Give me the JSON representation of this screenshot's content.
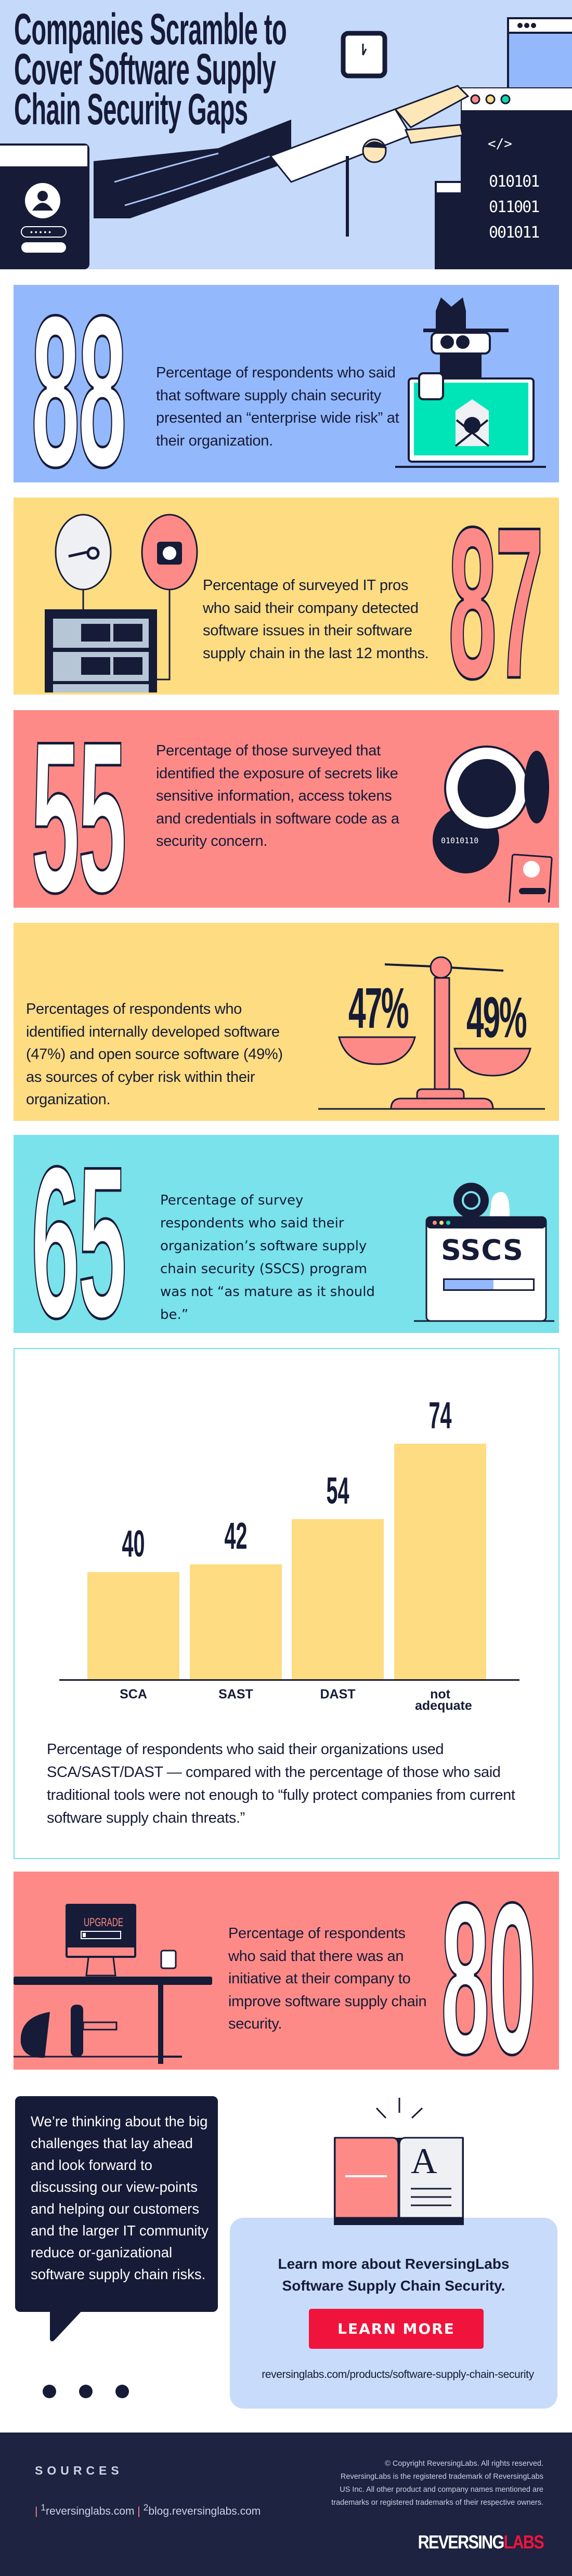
{
  "hero": {
    "title_lines": [
      "Companies Scramble to",
      "Cover Software Supply",
      "Chain Security Gaps"
    ],
    "code_tag": "</>",
    "binary_lines": [
      "010101",
      "011001",
      "001011"
    ]
  },
  "stats": [
    {
      "number": "88",
      "text": "Percentage of respondents who said that software supply chain security presented an “enterprise wide risk” at their organization.",
      "color": "#94b8fc"
    },
    {
      "number": "87",
      "text": "Percentage of surveyed IT pros who said their company detected software issues in their software supply chain in the last 12 months.",
      "color": "#fddc82"
    },
    {
      "number": "55",
      "text": "Percentage of those surveyed that identified the exposure of secrets like sensitive information, access tokens and credentials in software code as a security concern.",
      "color": "#fe8a87",
      "illustration_code": "01010110"
    },
    {
      "text": "Percentages of respondents who identified internally developed software (47%) and open source software (49%) as sources of cyber risk within their organization.",
      "left_value": "47%",
      "right_value": "49%",
      "color": "#fddc82"
    },
    {
      "number": "65",
      "text": "Percentage of survey respondents who said their organization’s software supply chain security (SSCS) program was not “as mature as it should be.”",
      "color": "#79e2eb",
      "badge": "SSCS",
      "maturity_progress": 0.55
    },
    {
      "number": "80",
      "text": "Percentage of respondents who said that there was an initiative at their company to improve software supply chain security.",
      "color": "#fe8a87",
      "screen_label": "UPGRADE"
    }
  ],
  "chart_data": {
    "type": "bar",
    "categories": [
      "SCA",
      "SAST",
      "DAST",
      "not adequate"
    ],
    "values": [
      40,
      42,
      54,
      74
    ],
    "bar_color": "#fddc82",
    "grid": false,
    "caption": "Percentage of respondents who said their organizations used SCA/SAST/DAST — compared with the percentage of those who said traditional tools were not enough to “fully protect companies from current software supply chain threats.”"
  },
  "quote": {
    "text": "We’re thinking about the big challenges that lay ahead and look forward to discussing our view-points and helping our customers and the larger IT community reduce or-ganizational software supply chain risks."
  },
  "cta": {
    "heading_line1": "Learn more about ReversingLabs",
    "heading_line2": "Software Supply Chain Security.",
    "button_label": "LEARN MORE",
    "link": "reversinglabs.com/products/software-supply-chain-security",
    "button_color": "#f0143c"
  },
  "footer": {
    "sources_label": "SOURCES",
    "source1_num": "1",
    "source1": "reversinglabs.com",
    "source2_num": "2",
    "source2": "blog.reversinglabs.com",
    "copyright_lines": [
      "© Copyright ReversingLabs. All rights reserved.",
      "ReversingLabs is the registered trademark of ReversingLabs",
      "US Inc. All other product and company names mentioned are",
      "trademarks or registered trademarks of their respective owners."
    ],
    "logo_part1": "REVERSING",
    "logo_part2": "LABS"
  }
}
